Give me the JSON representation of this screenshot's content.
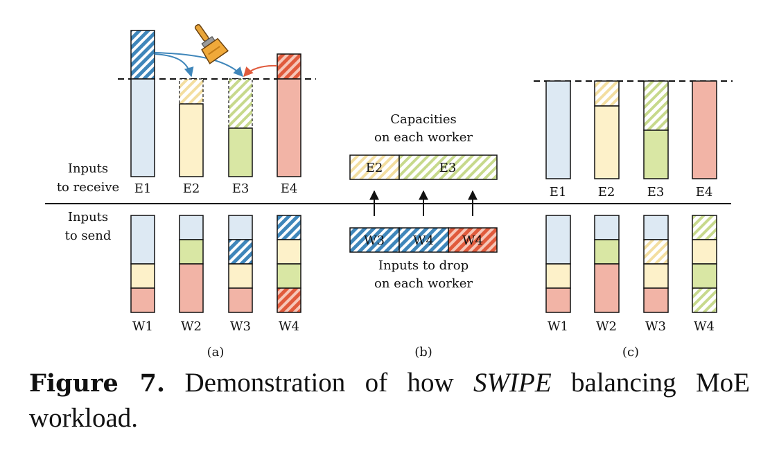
{
  "colors": {
    "blue": "#dde9f3",
    "blue_hatch": "#3f86ba",
    "yellow": "#fdf1c9",
    "yellow_hatch": "#f3dea0",
    "green": "#d9e7a4",
    "green_hatch": "#c7d98c",
    "red": "#f2b4a6",
    "red_hatch": "#e05a3c",
    "arrow_blue": "#3f86ba",
    "arrow_red": "#e05a3c"
  },
  "panel_a": {
    "receive_label_1": "Inputs",
    "receive_label_2": "to receive",
    "send_label_1": "Inputs",
    "send_label_2": "to send",
    "experts": [
      "E1",
      "E2",
      "E3",
      "E4"
    ],
    "workers": [
      "W1",
      "W2",
      "W3",
      "W4"
    ],
    "sub": "(a)",
    "brush_icon": "paint-brush-icon"
  },
  "panel_b": {
    "capacity_line1": "Capacities",
    "capacity_line2": "on each worker",
    "capacity_cells": [
      "E2",
      "E3"
    ],
    "drop_cells": [
      "W3",
      "W4",
      "W4"
    ],
    "drop_line1": "Inputs to drop",
    "drop_line2": "on each worker",
    "sub": "(b)"
  },
  "panel_c": {
    "experts": [
      "E1",
      "E2",
      "E3",
      "E4"
    ],
    "workers": [
      "W1",
      "W2",
      "W3",
      "W4"
    ],
    "sub": "(c)"
  },
  "caption": {
    "label": "Figure 7.",
    "text_before": " Demonstration of how ",
    "method": "SWIPE",
    "text_after": " balancing MoE workload."
  }
}
